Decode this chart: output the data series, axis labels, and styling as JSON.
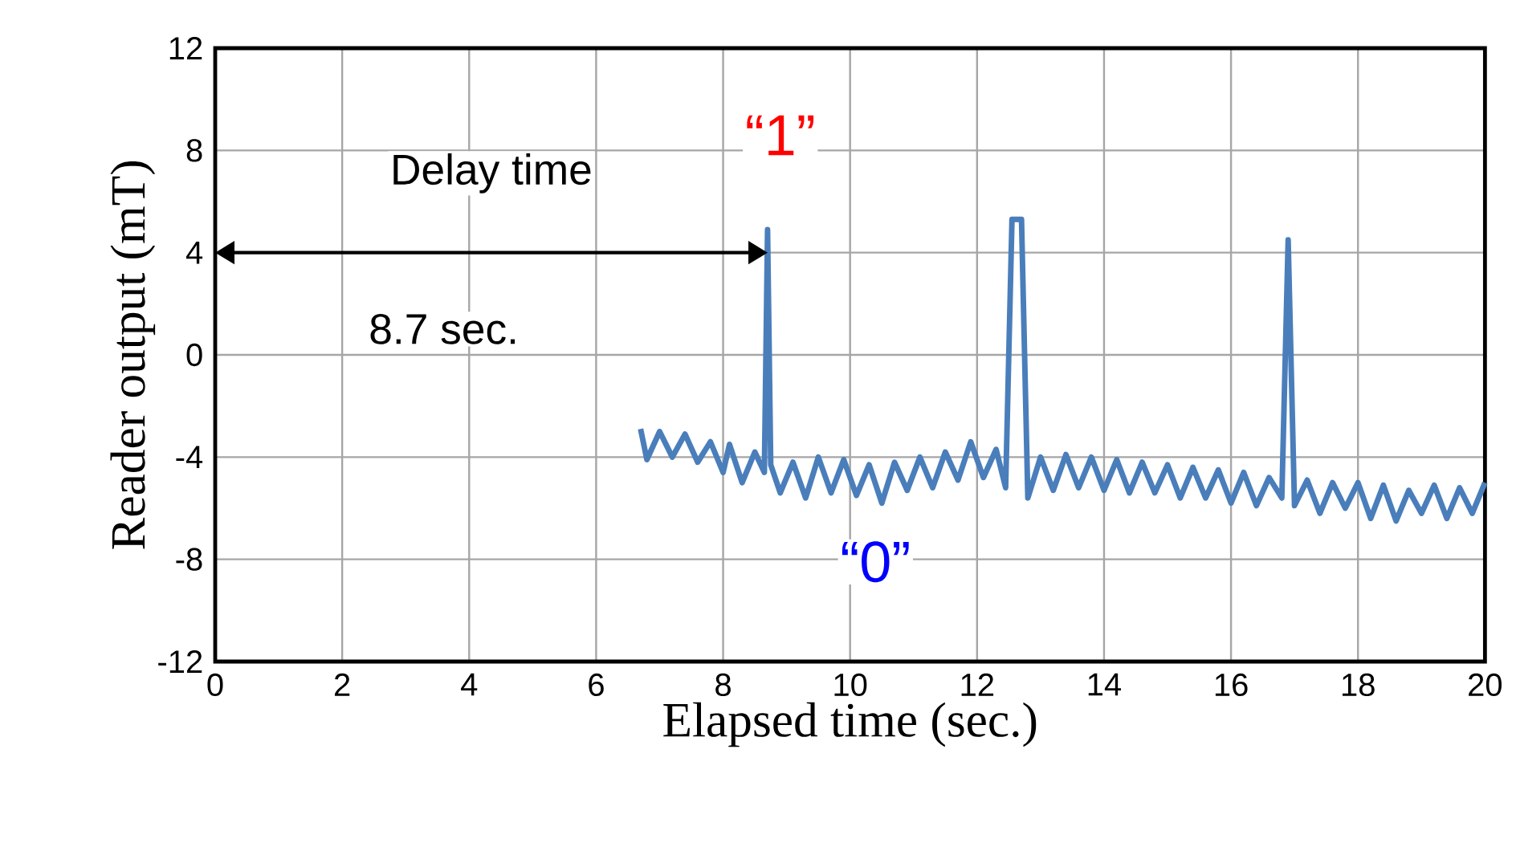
{
  "chart_data": {
    "type": "line",
    "xlabel": "Elapsed time (sec.)",
    "ylabel": "Reader output (mT)",
    "xlim": [
      0,
      20
    ],
    "ylim": [
      -12,
      12
    ],
    "xticks": [
      0,
      2,
      4,
      6,
      8,
      10,
      12,
      14,
      16,
      18,
      20
    ],
    "yticks": [
      -12,
      -8,
      -4,
      0,
      4,
      8,
      12
    ],
    "grid": true,
    "marker": "none",
    "line_style": "solid",
    "annotations": [
      "“1”",
      "“0”",
      "Delay time",
      "8.7 sec."
    ],
    "series": [
      {
        "color": "#4a7ebb",
        "x": [
          6.7,
          6.8,
          7.0,
          7.2,
          7.4,
          7.6,
          7.8,
          8.0,
          8.1,
          8.3,
          8.5,
          8.65,
          8.7,
          8.75,
          8.9,
          9.1,
          9.3,
          9.5,
          9.7,
          9.9,
          10.1,
          10.3,
          10.5,
          10.7,
          10.9,
          11.1,
          11.3,
          11.5,
          11.7,
          11.9,
          12.1,
          12.3,
          12.45,
          12.55,
          12.7,
          12.8,
          13.0,
          13.2,
          13.4,
          13.6,
          13.8,
          14.0,
          14.2,
          14.4,
          14.6,
          14.8,
          15.0,
          15.2,
          15.4,
          15.6,
          15.8,
          16.0,
          16.2,
          16.4,
          16.6,
          16.8,
          16.9,
          17.0,
          17.2,
          17.4,
          17.6,
          17.8,
          18.0,
          18.2,
          18.4,
          18.6,
          18.8,
          19.0,
          19.2,
          19.4,
          19.6,
          19.8,
          20.0
        ],
        "values": [
          -2.9,
          -4.1,
          -3.0,
          -4.0,
          -3.1,
          -4.2,
          -3.4,
          -4.6,
          -3.5,
          -5.0,
          -3.8,
          -4.6,
          4.9,
          -4.3,
          -5.4,
          -4.2,
          -5.6,
          -4.0,
          -5.4,
          -4.1,
          -5.5,
          -4.3,
          -5.8,
          -4.2,
          -5.3,
          -4.0,
          -5.2,
          -3.8,
          -4.9,
          -3.4,
          -4.8,
          -3.7,
          -5.2,
          5.3,
          5.3,
          -5.6,
          -4.0,
          -5.3,
          -3.9,
          -5.2,
          -4.0,
          -5.3,
          -4.1,
          -5.4,
          -4.2,
          -5.4,
          -4.3,
          -5.6,
          -4.4,
          -5.6,
          -4.5,
          -5.8,
          -4.6,
          -5.9,
          -4.8,
          -5.6,
          4.5,
          -5.9,
          -4.9,
          -6.2,
          -5.0,
          -6.0,
          -5.0,
          -6.4,
          -5.1,
          -6.5,
          -5.3,
          -6.2,
          -5.1,
          -6.4,
          -5.2,
          -6.2,
          -5.0
        ]
      }
    ]
  }
}
